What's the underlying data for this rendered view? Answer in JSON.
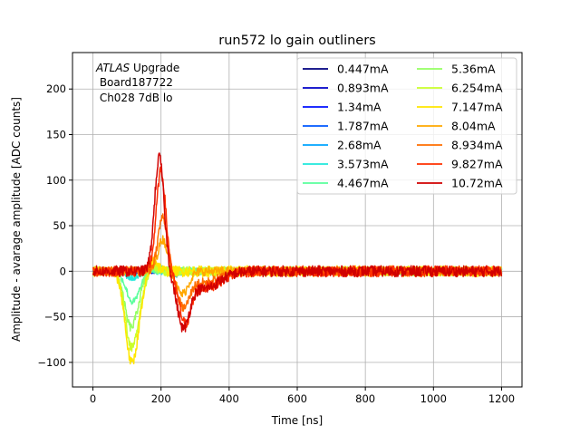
{
  "chart_data": {
    "type": "line",
    "title": "run572 lo gain outliners",
    "xlabel": "Time [ns]",
    "ylabel": "Amplitude - avarage amplitude [ADC counts]",
    "xlim": [
      -60,
      1260
    ],
    "ylim": [
      -127,
      240
    ],
    "xticks": [
      0,
      200,
      400,
      600,
      800,
      1000,
      1200
    ],
    "yticks": [
      -100,
      -50,
      0,
      50,
      100,
      150,
      200
    ],
    "grid": true,
    "legend_position": "top-right",
    "legend_columns": 2,
    "annotation": {
      "lines": [
        "ATLAS Upgrade",
        " Board187722",
        " Ch028 7dB lo"
      ],
      "italic_word": "ATLAS",
      "rest_first_line": " Upgrade"
    },
    "series": [
      {
        "name": "0.447mA",
        "color": "#00007f",
        "peak": 1,
        "dip": -1,
        "tpeak": 200,
        "tdip": 230,
        "noise": 3
      },
      {
        "name": "0.893mA",
        "color": "#0000c8",
        "peak": 1.5,
        "dip": -1.5,
        "tpeak": 200,
        "tdip": 230,
        "noise": 3
      },
      {
        "name": "1.34mA",
        "color": "#0010ff",
        "peak": 2,
        "dip": -2,
        "tpeak": 200,
        "tdip": 230,
        "noise": 3
      },
      {
        "name": "1.787mA",
        "color": "#0058ff",
        "peak": 3,
        "dip": -3,
        "tpeak": 198,
        "tdip": 230,
        "noise": 3
      },
      {
        "name": "2.68mA",
        "color": "#00a4ff",
        "peak": 4,
        "dip": -5,
        "tpeak": 198,
        "tdip": 235,
        "noise": 3
      },
      {
        "name": "3.573mA",
        "color": "#1fe8db",
        "peak": 4,
        "dip": -8,
        "tpeak": 160,
        "tdip": 120,
        "noise": 4
      },
      {
        "name": "4.467mA",
        "color": "#5aff9d",
        "peak": 5,
        "dip": -30,
        "tpeak": 165,
        "tdip": 115,
        "noise": 4
      },
      {
        "name": "5.36mA",
        "color": "#94ff63",
        "peak": 6,
        "dip": -55,
        "tpeak": 170,
        "tdip": 110,
        "noise": 5
      },
      {
        "name": "6.254mA",
        "color": "#caff2c",
        "peak": 8,
        "dip": -75,
        "tpeak": 172,
        "tdip": 112,
        "noise": 5
      },
      {
        "name": "7.147mA",
        "color": "#ffe600",
        "peak": 15,
        "dip": -90,
        "tpeak": 175,
        "tdip": 112,
        "noise": 6
      },
      {
        "name": "8.04mA",
        "color": "#ffa800",
        "peak": 35,
        "dip": -25,
        "tpeak": 205,
        "tdip": 262,
        "noise": 5
      },
      {
        "name": "8.934mA",
        "color": "#ff6e00",
        "peak": 60,
        "dip": -35,
        "tpeak": 205,
        "tdip": 265,
        "noise": 5
      },
      {
        "name": "9.827mA",
        "color": "#ff3000",
        "peak": 110,
        "dip": -50,
        "tpeak": 200,
        "tdip": 270,
        "noise": 6
      },
      {
        "name": "10.72mA",
        "color": "#d10000",
        "peak": 125,
        "dip": -55,
        "tpeak": 195,
        "tdip": 265,
        "noise": 6
      }
    ]
  }
}
